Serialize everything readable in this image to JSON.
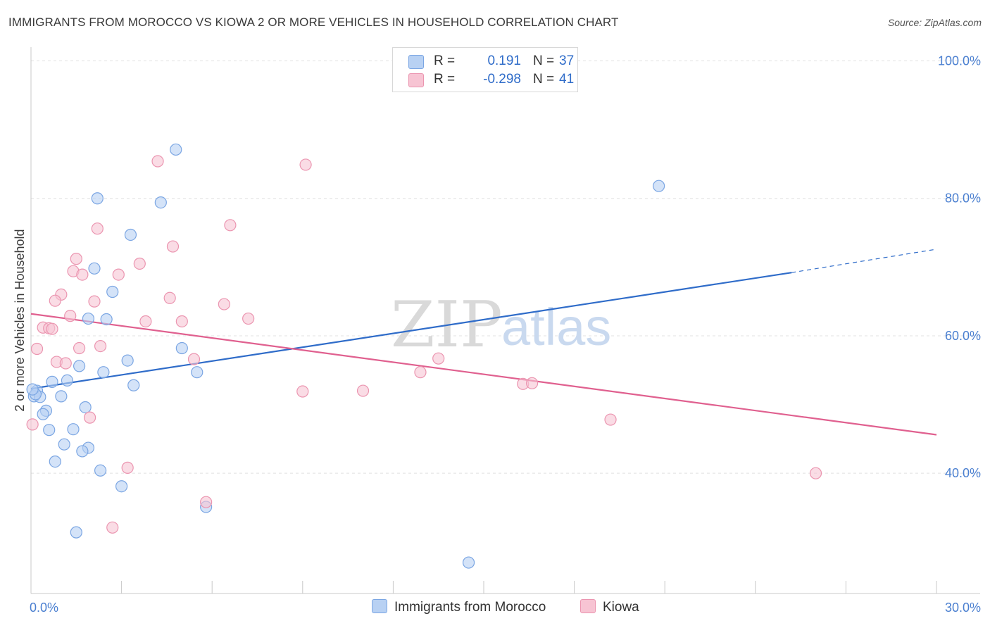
{
  "title": "IMMIGRANTS FROM MOROCCO VS KIOWA 2 OR MORE VEHICLES IN HOUSEHOLD CORRELATION CHART",
  "source": "Source: ZipAtlas.com",
  "watermark": {
    "zip": "ZIP",
    "atlas": "atlas"
  },
  "colors": {
    "blue_fill": "#b8d1f3",
    "blue_stroke": "#7ba6e3",
    "blue_line": "#2f6cc9",
    "pink_fill": "#f7c4d3",
    "pink_stroke": "#eb95b0",
    "pink_line": "#e0608f",
    "tick_text": "#4a7fd0",
    "grid": "#e0e0e0"
  },
  "legend": {
    "rows": [
      {
        "r_label": "R =",
        "r_value": "0.191",
        "n_label": "N =",
        "n_value": "37",
        "color": "blue"
      },
      {
        "r_label": "R =",
        "r_value": "-0.298",
        "n_label": "N =",
        "n_value": "41",
        "color": "pink"
      }
    ]
  },
  "bottom_legend": [
    "Immigrants from Morocco",
    "Kiowa"
  ],
  "chart_data": {
    "type": "scatter",
    "xlabel": "",
    "ylabel": "2 or more Vehicles in Household",
    "xlim": [
      0,
      30
    ],
    "ylim": [
      22.5,
      102
    ],
    "x_tick_labels": [
      {
        "value": 0,
        "label": "0.0%"
      },
      {
        "value": 30,
        "label": "30.0%"
      }
    ],
    "y_tick_labels": [
      {
        "value": 40,
        "label": "40.0%"
      },
      {
        "value": 60,
        "label": "60.0%"
      },
      {
        "value": 80,
        "label": "80.0%"
      },
      {
        "value": 100,
        "label": "100.0%"
      }
    ],
    "grid": "horizontal dashed",
    "legend_position": "top-center",
    "series": [
      {
        "name": "Immigrants from Morocco",
        "color": "blue",
        "trend": {
          "x0": 0,
          "y0": 52.3,
          "x1": 25.2,
          "y1": 69.2,
          "dashed_to_x": 30,
          "dashed_to_y": 72.6
        },
        "points": [
          [
            4.8,
            87.1
          ],
          [
            2.2,
            80.0
          ],
          [
            4.3,
            79.4
          ],
          [
            20.8,
            81.8
          ],
          [
            3.3,
            74.7
          ],
          [
            2.1,
            69.8
          ],
          [
            2.7,
            66.4
          ],
          [
            1.9,
            62.5
          ],
          [
            2.5,
            62.4
          ],
          [
            5.0,
            58.2
          ],
          [
            3.2,
            56.4
          ],
          [
            1.6,
            55.6
          ],
          [
            2.4,
            54.7
          ],
          [
            5.5,
            54.7
          ],
          [
            1.2,
            53.5
          ],
          [
            0.7,
            53.3
          ],
          [
            3.4,
            52.8
          ],
          [
            0.2,
            52.0
          ],
          [
            0.1,
            51.2
          ],
          [
            0.3,
            51.1
          ],
          [
            1.0,
            51.2
          ],
          [
            1.8,
            49.6
          ],
          [
            0.5,
            49.1
          ],
          [
            0.4,
            48.6
          ],
          [
            0.6,
            46.3
          ],
          [
            1.4,
            46.4
          ],
          [
            1.1,
            44.2
          ],
          [
            1.9,
            43.7
          ],
          [
            1.7,
            43.2
          ],
          [
            0.8,
            41.7
          ],
          [
            2.3,
            40.4
          ],
          [
            3.0,
            38.1
          ],
          [
            5.8,
            35.1
          ],
          [
            1.5,
            31.4
          ],
          [
            14.5,
            27.0
          ],
          [
            0.15,
            51.5
          ],
          [
            0.05,
            52.2
          ]
        ]
      },
      {
        "name": "Kiowa",
        "color": "pink",
        "trend": {
          "x0": 0,
          "y0": 63.2,
          "x1": 30,
          "y1": 45.6
        },
        "points": [
          [
            4.2,
            85.4
          ],
          [
            9.1,
            84.9
          ],
          [
            6.6,
            76.1
          ],
          [
            2.2,
            75.6
          ],
          [
            4.7,
            73.0
          ],
          [
            1.5,
            71.2
          ],
          [
            3.6,
            70.5
          ],
          [
            1.4,
            69.4
          ],
          [
            1.7,
            68.9
          ],
          [
            2.9,
            68.9
          ],
          [
            1.0,
            66.0
          ],
          [
            0.8,
            65.1
          ],
          [
            2.1,
            65.0
          ],
          [
            4.6,
            65.5
          ],
          [
            6.4,
            64.6
          ],
          [
            1.3,
            62.9
          ],
          [
            3.8,
            62.1
          ],
          [
            5.0,
            62.1
          ],
          [
            7.2,
            62.5
          ],
          [
            0.4,
            61.2
          ],
          [
            0.6,
            61.1
          ],
          [
            0.7,
            61.0
          ],
          [
            2.3,
            58.5
          ],
          [
            1.6,
            58.2
          ],
          [
            0.2,
            58.1
          ],
          [
            0.85,
            56.2
          ],
          [
            1.15,
            56.0
          ],
          [
            5.4,
            56.6
          ],
          [
            13.5,
            56.7
          ],
          [
            12.9,
            54.7
          ],
          [
            16.3,
            53.0
          ],
          [
            16.6,
            53.1
          ],
          [
            9.0,
            51.9
          ],
          [
            11.0,
            52.0
          ],
          [
            1.95,
            48.1
          ],
          [
            19.2,
            47.8
          ],
          [
            0.05,
            47.1
          ],
          [
            3.2,
            40.8
          ],
          [
            5.8,
            35.8
          ],
          [
            2.7,
            32.1
          ],
          [
            26.0,
            40.0
          ]
        ]
      }
    ]
  }
}
